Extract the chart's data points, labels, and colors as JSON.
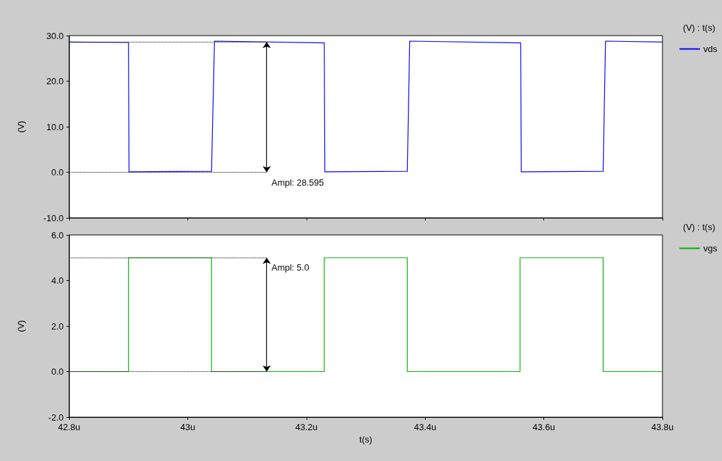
{
  "chart_data": [
    {
      "type": "line",
      "ylabel": "(V)",
      "legend_title": "(V) : t(s)",
      "legend": "right",
      "tick_labels": "y",
      "grid": false,
      "marker": "none",
      "line_style": "solid",
      "xlim": [
        42.8,
        43.8
      ],
      "xticks": [
        {
          "value": 42.8,
          "label": null
        },
        {
          "value": 43,
          "label": null
        },
        {
          "value": 43.2,
          "label": null
        },
        {
          "value": 43.4,
          "label": null
        },
        {
          "value": 43.6,
          "label": null
        },
        {
          "value": 43.8,
          "label": null
        }
      ],
      "ylim": [
        -10,
        30
      ],
      "yticks": [
        {
          "value": -10,
          "label": "-10.0"
        },
        {
          "value": 0,
          "label": "0.0"
        },
        {
          "value": 10,
          "label": "10.0"
        },
        {
          "value": 20,
          "label": "20.0"
        },
        {
          "value": 30,
          "label": "30.0"
        }
      ],
      "series": [
        {
          "name": "vds",
          "color": "#0000ff",
          "x": [
            42.8,
            42.9,
            42.901,
            43.04,
            43.045,
            43.23,
            43.231,
            43.37,
            43.374,
            43.561,
            43.562,
            43.7,
            43.704,
            43.8
          ],
          "values": [
            28.6,
            28.5,
            0.1,
            0.2,
            28.8,
            28.4,
            0.1,
            0.2,
            28.8,
            28.4,
            0.1,
            0.2,
            28.8,
            28.6
          ]
        }
      ],
      "ref_lines": [
        {
          "axis": "y",
          "value": 28.595,
          "color": "#000000",
          "line_style": "dotted"
        },
        {
          "axis": "y",
          "value": 0,
          "color": "#000000",
          "line_style": "dotted"
        }
      ],
      "annotations": [
        {
          "text": "Ampl: 28.595",
          "x": 43.133,
          "y": 0
        }
      ]
    },
    {
      "type": "line",
      "xlabel": "t(s)",
      "ylabel": "(V)",
      "legend_title": "(V) : t(s)",
      "legend": "right",
      "grid": false,
      "marker": "none",
      "line_style": "solid",
      "xlim": [
        42.8,
        43.8
      ],
      "xticks": [
        {
          "value": 42.8,
          "label": "42.8u"
        },
        {
          "value": 43,
          "label": "43u"
        },
        {
          "value": 43.2,
          "label": "43.2u"
        },
        {
          "value": 43.4,
          "label": "43.4u"
        },
        {
          "value": 43.6,
          "label": "43.6u"
        },
        {
          "value": 43.8,
          "label": "43.8u"
        }
      ],
      "ylim": [
        -2,
        6
      ],
      "yticks": [
        {
          "value": -2,
          "label": "-2.0"
        },
        {
          "value": 0,
          "label": "0.0"
        },
        {
          "value": 2,
          "label": "2.0"
        },
        {
          "value": 4,
          "label": "4.0"
        },
        {
          "value": 6,
          "label": "6.0"
        }
      ],
      "series": [
        {
          "name": "vgs",
          "color": "#00b000",
          "x": [
            42.8,
            42.9,
            42.9,
            43.04,
            43.04,
            43.23,
            43.23,
            43.37,
            43.37,
            43.56,
            43.56,
            43.7,
            43.7,
            43.8
          ],
          "values": [
            0,
            0,
            5,
            5,
            0,
            0,
            5,
            5,
            0,
            0,
            5,
            5,
            0,
            0
          ]
        }
      ],
      "ref_lines": [
        {
          "axis": "y",
          "value": 5,
          "color": "#000000",
          "line_style": "dotted"
        },
        {
          "axis": "y",
          "value": 0,
          "color": "#000000",
          "line_style": "dotted"
        }
      ],
      "annotations": [
        {
          "text": "Ampl: 5.0",
          "x": 43.133,
          "y": 5
        }
      ]
    }
  ]
}
